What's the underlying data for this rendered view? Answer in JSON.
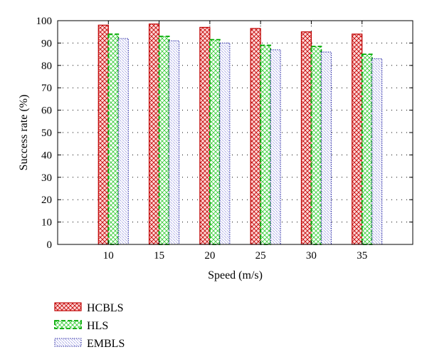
{
  "chart_data": {
    "type": "bar",
    "title": "",
    "xlabel": "Speed (m/s)",
    "ylabel": "Success rate (%)",
    "categories": [
      "10",
      "15",
      "20",
      "25",
      "30",
      "35"
    ],
    "ylim": [
      0,
      100
    ],
    "yticks": [
      0,
      10,
      20,
      30,
      40,
      50,
      60,
      70,
      80,
      90,
      100
    ],
    "grid": true,
    "legend_position": "below",
    "series": [
      {
        "name": "HCBLS",
        "values": [
          98,
          98.5,
          97,
          96.5,
          95,
          94
        ],
        "color": "#c00000",
        "fill": "#ffd0d0",
        "pattern": "crosshatch"
      },
      {
        "name": "HLS",
        "values": [
          94,
          93,
          91.5,
          89,
          88.5,
          85
        ],
        "color": "#00aa00",
        "fill": "#ffffff",
        "pattern": "green-crosshatch"
      },
      {
        "name": "EMBLS",
        "values": [
          92,
          91,
          90,
          87,
          86,
          83
        ],
        "color": "#2020a0",
        "fill": "#ffffff",
        "pattern": "diagonal"
      }
    ]
  }
}
